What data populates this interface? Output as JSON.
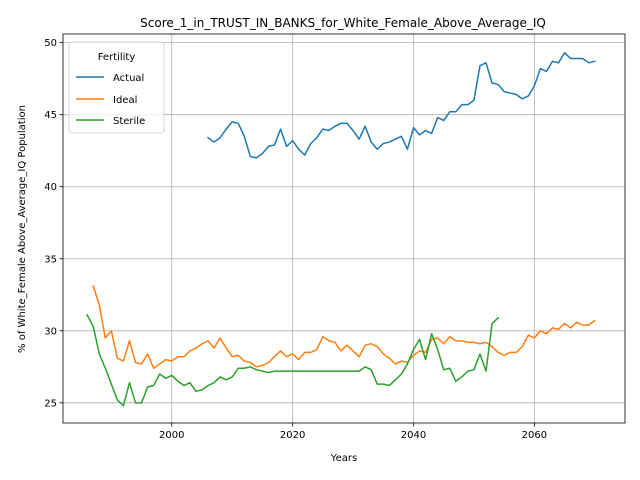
{
  "chart_data": {
    "type": "line",
    "title": "Score_1_in_TRUST_IN_BANKS_for_White_Female_Above_Average_IQ",
    "xlabel": "Years",
    "ylabel": "% of White_Female Above_Average_IQ Population",
    "xlim": [
      1982,
      2075
    ],
    "ylim": [
      23.6,
      50.6
    ],
    "xticks": [
      2000,
      2020,
      2040,
      2060
    ],
    "yticks": [
      25,
      30,
      35,
      40,
      45,
      50
    ],
    "grid": true,
    "legend": {
      "title": "Fertility",
      "placement": "top-left"
    },
    "series": [
      {
        "name": "Actual",
        "color": "#1f77b4",
        "points": [
          [
            2006,
            43.4
          ],
          [
            2007,
            43.1
          ],
          [
            2008,
            43.4
          ],
          [
            2009,
            44.0
          ],
          [
            2010,
            44.5
          ],
          [
            2011,
            44.4
          ],
          [
            2012,
            43.5
          ],
          [
            2013,
            42.1
          ],
          [
            2014,
            42.0
          ],
          [
            2015,
            42.3
          ],
          [
            2016,
            42.8
          ],
          [
            2017,
            42.9
          ],
          [
            2018,
            44.0
          ],
          [
            2019,
            42.8
          ],
          [
            2020,
            43.2
          ],
          [
            2021,
            42.6
          ],
          [
            2022,
            42.2
          ],
          [
            2023,
            43.0
          ],
          [
            2024,
            43.4
          ],
          [
            2025,
            44.0
          ],
          [
            2026,
            43.9
          ],
          [
            2027,
            44.2
          ],
          [
            2028,
            44.4
          ],
          [
            2029,
            44.4
          ],
          [
            2030,
            43.9
          ],
          [
            2031,
            43.3
          ],
          [
            2032,
            44.2
          ],
          [
            2033,
            43.1
          ],
          [
            2034,
            42.6
          ],
          [
            2035,
            43.0
          ],
          [
            2036,
            43.1
          ],
          [
            2037,
            43.3
          ],
          [
            2038,
            43.5
          ],
          [
            2039,
            42.6
          ],
          [
            2040,
            44.1
          ],
          [
            2041,
            43.6
          ],
          [
            2042,
            43.9
          ],
          [
            2043,
            43.7
          ],
          [
            2044,
            44.8
          ],
          [
            2045,
            44.6
          ],
          [
            2046,
            45.2
          ],
          [
            2047,
            45.2
          ],
          [
            2048,
            45.7
          ],
          [
            2049,
            45.7
          ],
          [
            2050,
            46.0
          ],
          [
            2051,
            48.4
          ],
          [
            2052,
            48.6
          ],
          [
            2053,
            47.2
          ],
          [
            2054,
            47.1
          ],
          [
            2055,
            46.6
          ],
          [
            2056,
            46.5
          ],
          [
            2057,
            46.4
          ],
          [
            2058,
            46.1
          ],
          [
            2059,
            46.3
          ],
          [
            2060,
            47.0
          ],
          [
            2061,
            48.2
          ],
          [
            2062,
            48.0
          ],
          [
            2063,
            48.7
          ],
          [
            2064,
            48.6
          ],
          [
            2065,
            49.3
          ],
          [
            2066,
            48.9
          ],
          [
            2067,
            48.9
          ],
          [
            2068,
            48.9
          ],
          [
            2069,
            48.6
          ],
          [
            2070,
            48.7
          ]
        ]
      },
      {
        "name": "Ideal",
        "color": "#ff7f0e",
        "points": [
          [
            1987,
            33.1
          ],
          [
            1988,
            31.8
          ],
          [
            1989,
            29.5
          ],
          [
            1990,
            30.0
          ],
          [
            1991,
            28.1
          ],
          [
            1992,
            27.9
          ],
          [
            1993,
            29.3
          ],
          [
            1994,
            27.8
          ],
          [
            1995,
            27.7
          ],
          [
            1996,
            28.4
          ],
          [
            1997,
            27.4
          ],
          [
            1998,
            27.7
          ],
          [
            1999,
            28.0
          ],
          [
            2000,
            27.9
          ],
          [
            2001,
            28.2
          ],
          [
            2002,
            28.2
          ],
          [
            2003,
            28.6
          ],
          [
            2004,
            28.8
          ],
          [
            2005,
            29.1
          ],
          [
            2006,
            29.3
          ],
          [
            2007,
            28.8
          ],
          [
            2008,
            29.5
          ],
          [
            2009,
            28.8
          ],
          [
            2010,
            28.2
          ],
          [
            2011,
            28.3
          ],
          [
            2012,
            27.9
          ],
          [
            2013,
            27.8
          ],
          [
            2014,
            27.5
          ],
          [
            2015,
            27.6
          ],
          [
            2016,
            27.8
          ],
          [
            2017,
            28.2
          ],
          [
            2018,
            28.6
          ],
          [
            2019,
            28.2
          ],
          [
            2020,
            28.4
          ],
          [
            2021,
            28.0
          ],
          [
            2022,
            28.5
          ],
          [
            2023,
            28.5
          ],
          [
            2024,
            28.7
          ],
          [
            2025,
            29.6
          ],
          [
            2026,
            29.3
          ],
          [
            2027,
            29.2
          ],
          [
            2028,
            28.6
          ],
          [
            2029,
            29.0
          ],
          [
            2030,
            28.6
          ],
          [
            2031,
            28.2
          ],
          [
            2032,
            29.0
          ],
          [
            2033,
            29.1
          ],
          [
            2034,
            28.9
          ],
          [
            2035,
            28.4
          ],
          [
            2036,
            28.1
          ],
          [
            2037,
            27.7
          ],
          [
            2038,
            27.9
          ],
          [
            2039,
            27.8
          ],
          [
            2040,
            28.3
          ],
          [
            2041,
            28.6
          ],
          [
            2042,
            28.5
          ],
          [
            2043,
            29.4
          ],
          [
            2044,
            29.5
          ],
          [
            2045,
            29.1
          ],
          [
            2046,
            29.6
          ],
          [
            2047,
            29.3
          ],
          [
            2048,
            29.3
          ],
          [
            2049,
            29.2
          ],
          [
            2050,
            29.2
          ],
          [
            2051,
            29.1
          ],
          [
            2052,
            29.2
          ],
          [
            2053,
            28.9
          ],
          [
            2054,
            28.5
          ],
          [
            2055,
            28.3
          ],
          [
            2056,
            28.5
          ],
          [
            2057,
            28.5
          ],
          [
            2058,
            28.9
          ],
          [
            2059,
            29.7
          ],
          [
            2060,
            29.5
          ],
          [
            2061,
            30.0
          ],
          [
            2062,
            29.8
          ],
          [
            2063,
            30.2
          ],
          [
            2064,
            30.1
          ],
          [
            2065,
            30.5
          ],
          [
            2066,
            30.2
          ],
          [
            2067,
            30.6
          ],
          [
            2068,
            30.4
          ],
          [
            2069,
            30.4
          ],
          [
            2070,
            30.7
          ]
        ]
      },
      {
        "name": "Sterile",
        "color": "#2ca02c",
        "points": [
          [
            1986,
            31.1
          ],
          [
            1987,
            30.3
          ],
          [
            1988,
            28.4
          ],
          [
            1989,
            27.4
          ],
          [
            1990,
            26.3
          ],
          [
            1991,
            25.2
          ],
          [
            1992,
            24.8
          ],
          [
            1993,
            26.4
          ],
          [
            1994,
            25.0
          ],
          [
            1995,
            25.0
          ],
          [
            1996,
            26.1
          ],
          [
            1997,
            26.2
          ],
          [
            1998,
            27.0
          ],
          [
            1999,
            26.7
          ],
          [
            2000,
            26.9
          ],
          [
            2001,
            26.5
          ],
          [
            2002,
            26.2
          ],
          [
            2003,
            26.4
          ],
          [
            2004,
            25.8
          ],
          [
            2005,
            25.9
          ],
          [
            2006,
            26.2
          ],
          [
            2007,
            26.4
          ],
          [
            2008,
            26.8
          ],
          [
            2009,
            26.6
          ],
          [
            2010,
            26.8
          ],
          [
            2011,
            27.4
          ],
          [
            2012,
            27.4
          ],
          [
            2013,
            27.5
          ],
          [
            2014,
            27.3
          ],
          [
            2015,
            27.2
          ],
          [
            2016,
            27.1
          ],
          [
            2017,
            27.2
          ],
          [
            2018,
            27.2
          ],
          [
            2019,
            27.2
          ],
          [
            2020,
            27.2
          ],
          [
            2021,
            27.2
          ],
          [
            2022,
            27.2
          ],
          [
            2023,
            27.2
          ],
          [
            2024,
            27.2
          ],
          [
            2025,
            27.2
          ],
          [
            2026,
            27.2
          ],
          [
            2027,
            27.2
          ],
          [
            2028,
            27.2
          ],
          [
            2029,
            27.2
          ],
          [
            2030,
            27.2
          ],
          [
            2031,
            27.2
          ],
          [
            2032,
            27.5
          ],
          [
            2033,
            27.3
          ],
          [
            2034,
            26.3
          ],
          [
            2035,
            26.3
          ],
          [
            2036,
            26.2
          ],
          [
            2037,
            26.6
          ],
          [
            2038,
            27.0
          ],
          [
            2039,
            27.7
          ],
          [
            2040,
            28.7
          ],
          [
            2041,
            29.4
          ],
          [
            2042,
            28.0
          ],
          [
            2043,
            29.8
          ],
          [
            2044,
            28.7
          ],
          [
            2045,
            27.3
          ],
          [
            2046,
            27.4
          ],
          [
            2047,
            26.5
          ],
          [
            2048,
            26.8
          ],
          [
            2049,
            27.2
          ],
          [
            2050,
            27.3
          ],
          [
            2051,
            28.4
          ],
          [
            2052,
            27.2
          ],
          [
            2053,
            30.5
          ],
          [
            2054,
            30.9
          ]
        ]
      }
    ]
  }
}
